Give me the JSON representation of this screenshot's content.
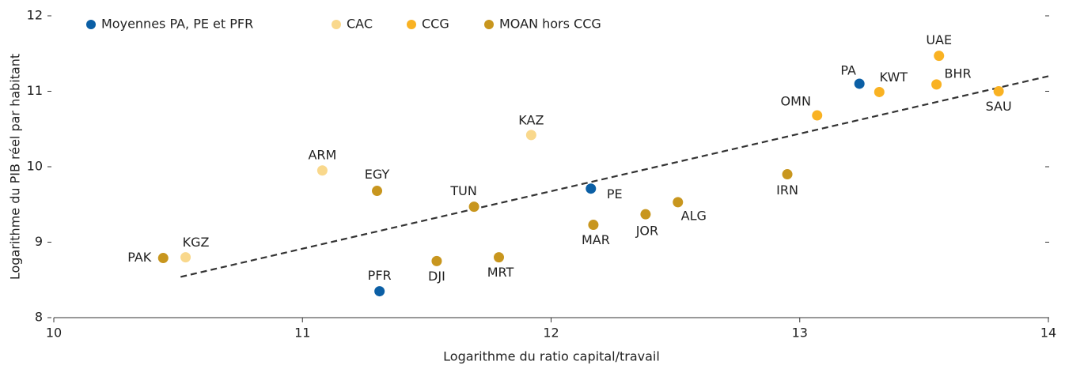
{
  "chart_data": {
    "type": "scatter",
    "xlabel": "Logarithme du ratio capital/travail",
    "ylabel": "Logarithme du PIB réel par habitant",
    "xlim": [
      10,
      14
    ],
    "xticks": [
      10,
      11,
      12,
      13,
      14
    ],
    "ylim": [
      8,
      12
    ],
    "yticks": [
      8,
      9,
      10,
      11,
      12
    ],
    "series": [
      {
        "name": "Moyennes PA, PE et PFR",
        "color": "#0b5fa5",
        "labels": [
          "PA",
          "PE",
          "PFR"
        ],
        "x": [
          13.24,
          12.16,
          11.31
        ],
        "values": [
          11.1,
          9.71,
          8.35
        ]
      },
      {
        "name": "CAC",
        "color": "#f9d88c",
        "labels": [
          "KGZ",
          "ARM",
          "KAZ"
        ],
        "x": [
          10.53,
          11.08,
          11.92
        ],
        "values": [
          8.8,
          9.95,
          10.42
        ]
      },
      {
        "name": "CCG",
        "color": "#f9b223",
        "labels": [
          "OMN",
          "KWT",
          "UAE",
          "BHR",
          "SAU"
        ],
        "x": [
          13.07,
          13.32,
          13.56,
          13.55,
          13.8
        ],
        "values": [
          10.68,
          10.99,
          11.47,
          11.09,
          11.0
        ]
      },
      {
        "name": "MOAN hors CCG",
        "color": "#c8961e",
        "labels": [
          "PAK",
          "EGY",
          "DJI",
          "TUN",
          "MRT",
          "MAR",
          "JOR",
          "ALG",
          "IRN"
        ],
        "x": [
          10.44,
          11.3,
          11.54,
          11.69,
          11.79,
          12.17,
          12.38,
          12.51,
          12.95
        ],
        "values": [
          8.79,
          9.68,
          8.75,
          9.47,
          8.8,
          9.23,
          9.37,
          9.53,
          9.9
        ]
      }
    ],
    "trendline": {
      "x": [
        10.51,
        14
      ],
      "y": [
        8.54,
        11.2
      ]
    }
  }
}
